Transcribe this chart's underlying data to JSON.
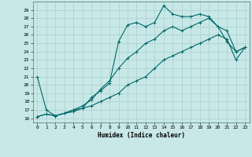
{
  "xlabel": "Humidex (Indice chaleur)",
  "xlim": [
    -0.5,
    23.5
  ],
  "ylim": [
    15.5,
    30
  ],
  "yticks": [
    16,
    17,
    18,
    19,
    20,
    21,
    22,
    23,
    24,
    25,
    26,
    27,
    28,
    29
  ],
  "xticks": [
    0,
    1,
    2,
    3,
    4,
    5,
    6,
    7,
    8,
    9,
    10,
    11,
    12,
    13,
    14,
    15,
    16,
    17,
    18,
    19,
    20,
    21,
    22,
    23
  ],
  "background_color": "#c8e8e8",
  "grid_color": "#a8cece",
  "line_color": "#006868",
  "line1_x": [
    0,
    1,
    2,
    3,
    4,
    5,
    6,
    7,
    8,
    9,
    10,
    11,
    12,
    13,
    14,
    15,
    16,
    17,
    18,
    19,
    20,
    21,
    22,
    23
  ],
  "line1_y": [
    21,
    17,
    16.3,
    16.6,
    16.8,
    17.2,
    18.5,
    19.3,
    20.2,
    25.2,
    27.2,
    27.5,
    27.0,
    27.5,
    29.5,
    28.5,
    28.2,
    28.2,
    28.5,
    28.2,
    27.0,
    25.2,
    24.0,
    24.5
  ],
  "line2_x": [
    0,
    1,
    2,
    3,
    4,
    5,
    6,
    7,
    8,
    9,
    10,
    11,
    12,
    13,
    14,
    15,
    16,
    17,
    18,
    19,
    20,
    21,
    22,
    23
  ],
  "line2_y": [
    16.2,
    16.5,
    16.3,
    16.6,
    17.0,
    17.5,
    18.2,
    19.5,
    20.5,
    22.0,
    23.2,
    24.0,
    25.0,
    25.5,
    26.5,
    27.0,
    26.5,
    27.0,
    27.5,
    28.0,
    27.0,
    26.5,
    24.0,
    24.5
  ],
  "line3_x": [
    0,
    1,
    2,
    3,
    4,
    5,
    6,
    7,
    8,
    9,
    10,
    11,
    12,
    13,
    14,
    15,
    16,
    17,
    18,
    19,
    20,
    21,
    22,
    23
  ],
  "line3_y": [
    16.2,
    16.5,
    16.3,
    16.6,
    17.0,
    17.2,
    17.5,
    18.0,
    18.5,
    19.0,
    20.0,
    20.5,
    21.0,
    22.0,
    23.0,
    23.5,
    24.0,
    24.5,
    25.0,
    25.5,
    26.0,
    25.5,
    23.0,
    24.5
  ]
}
